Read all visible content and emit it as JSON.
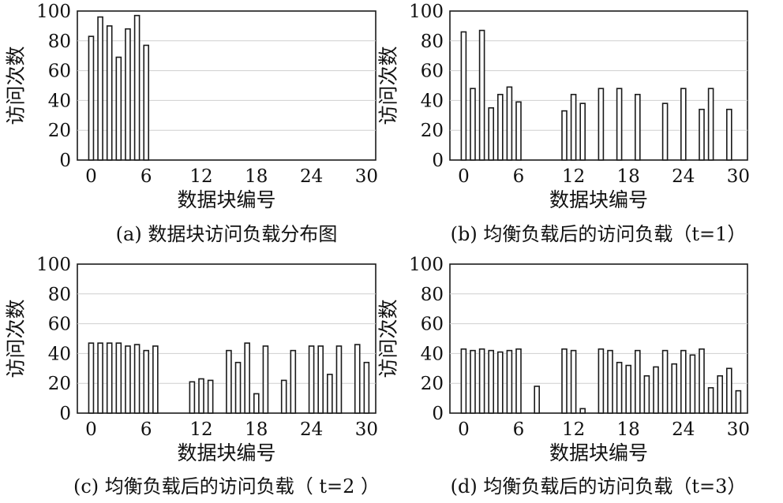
{
  "chart_data": [
    {
      "type": "bar",
      "panel": "a",
      "caption": "(a) 数据块访问负载分布图",
      "xlabel": "数据块编号",
      "ylabel": "访问次数",
      "xlim": [
        -1.5,
        31
      ],
      "ylim": [
        0,
        100
      ],
      "xticks": [
        0,
        6,
        12,
        18,
        24,
        30
      ],
      "yticks": [
        0,
        20,
        40,
        60,
        80,
        100
      ],
      "grid": true,
      "x": [
        0,
        1,
        2,
        3,
        4,
        5,
        6
      ],
      "values": [
        83,
        96,
        90,
        69,
        88,
        97,
        77
      ]
    },
    {
      "type": "bar",
      "panel": "b",
      "caption": "(b) 均衡负载后的访问负载（t=1）",
      "xlabel": "数据块编号",
      "ylabel": "访问次数",
      "xlim": [
        -1.5,
        31
      ],
      "ylim": [
        0,
        100
      ],
      "xticks": [
        0,
        6,
        12,
        18,
        24,
        30
      ],
      "yticks": [
        0,
        20,
        40,
        60,
        80,
        100
      ],
      "grid": true,
      "x": [
        0,
        1,
        2,
        3,
        4,
        5,
        6,
        11,
        12,
        13,
        15,
        17,
        19,
        22,
        24,
        26,
        27,
        29
      ],
      "values": [
        86,
        48,
        87,
        35,
        44,
        49,
        39,
        33,
        44,
        38,
        48,
        48,
        44,
        38,
        48,
        34,
        48,
        34
      ]
    },
    {
      "type": "bar",
      "panel": "c",
      "caption": "(c) 均衡负载后的访问负载（ t=2 ）",
      "xlabel": "数据块编号",
      "ylabel": "访问次数",
      "xlim": [
        -1.5,
        31
      ],
      "ylim": [
        0,
        100
      ],
      "xticks": [
        0,
        6,
        12,
        18,
        24,
        30
      ],
      "yticks": [
        0,
        20,
        40,
        60,
        80,
        100
      ],
      "grid": true,
      "x": [
        0,
        1,
        2,
        3,
        4,
        5,
        6,
        7,
        11,
        12,
        13,
        15,
        16,
        17,
        18,
        19,
        21,
        22,
        24,
        25,
        26,
        27,
        29,
        30
      ],
      "values": [
        47,
        47,
        47,
        47,
        45,
        46,
        42,
        45,
        21,
        23,
        22,
        42,
        34,
        47,
        13,
        45,
        22,
        42,
        45,
        45,
        26,
        45,
        46,
        34
      ]
    },
    {
      "type": "bar",
      "panel": "d",
      "caption": "(d) 均衡负载后的访问负载（t=3）",
      "xlabel": "数据块编号",
      "ylabel": "访问次数",
      "xlim": [
        -1.5,
        31
      ],
      "ylim": [
        0,
        100
      ],
      "xticks": [
        0,
        6,
        12,
        18,
        24,
        30
      ],
      "yticks": [
        0,
        20,
        40,
        60,
        80,
        100
      ],
      "grid": true,
      "x": [
        0,
        1,
        2,
        3,
        4,
        5,
        6,
        8,
        11,
        12,
        13,
        15,
        16,
        17,
        18,
        19,
        20,
        21,
        22,
        23,
        24,
        25,
        26,
        27,
        28,
        29,
        30
      ],
      "values": [
        43,
        42,
        43,
        42,
        41,
        42,
        43,
        18,
        43,
        42,
        3,
        43,
        42,
        34,
        32,
        42,
        25,
        31,
        42,
        33,
        42,
        39,
        43,
        17,
        25,
        30,
        15
      ]
    }
  ]
}
